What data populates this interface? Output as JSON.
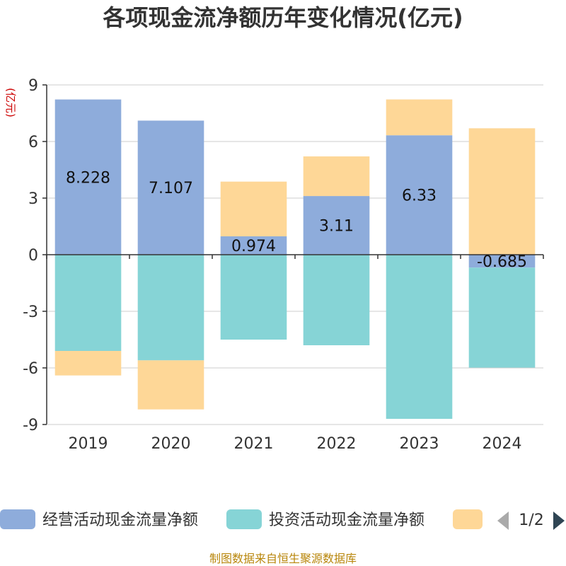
{
  "chart_data": {
    "type": "bar",
    "stacked": true,
    "title": "各项现金流净额历年变化情况(亿元)",
    "ylabel": "(亿元)",
    "categories": [
      "2019",
      "2020",
      "2021",
      "2022",
      "2023",
      "2024"
    ],
    "ylim": [
      -9,
      9
    ],
    "yticks": [
      9,
      6,
      3,
      0,
      -3,
      -6,
      -9
    ],
    "grid": true,
    "series": [
      {
        "name": "经营活动现金流量净额",
        "color": "#8eacdb",
        "values": [
          8.228,
          7.107,
          0.974,
          3.11,
          6.33,
          -0.685
        ],
        "labels": [
          "8.228",
          "7.107",
          "0.974",
          "3.11",
          "6.33",
          "-0.685"
        ]
      },
      {
        "name": "投资活动现金流量净额",
        "color": "#86d4d6",
        "values": [
          -5.1,
          -5.6,
          -4.5,
          -4.8,
          -8.7,
          -5.3
        ]
      },
      {
        "name": "",
        "color": "#fed797",
        "values": [
          -1.3,
          -2.6,
          2.9,
          2.1,
          1.9,
          6.7
        ]
      }
    ],
    "legend": {
      "position": "bottom",
      "page": "1/2"
    }
  },
  "footer": {
    "source": "制图数据来自恒生聚源数据库"
  }
}
